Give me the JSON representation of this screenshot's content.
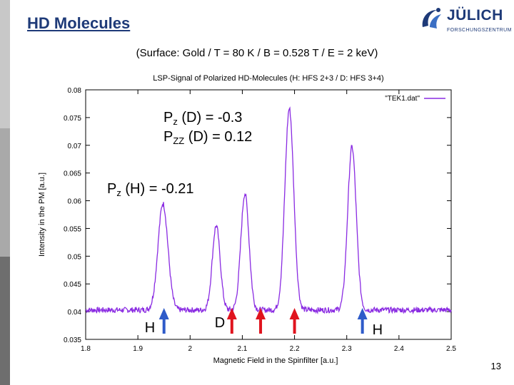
{
  "slide": {
    "title": "HD Molecules",
    "subtitle": "(Surface: Gold / T = 80 K / B = 0.528 T / E = 2 keV)",
    "page_number": "13"
  },
  "logo": {
    "name": "JÜLICH",
    "sub": "FORSCHUNGSZENTRUM",
    "brand_color": "#1e3a78"
  },
  "colors": {
    "trace": "#8a2be2",
    "h_arrow": "#2e5bc9",
    "d_arrow": "#e0141e"
  },
  "annotations": {
    "pz_d_main": "P",
    "pz_d_sub": "z",
    "pz_d_rest": " (D) = -0.3",
    "pzz_d_main": "P",
    "pzz_d_sub": "ZZ",
    "pzz_d_rest": " (D) = 0.12",
    "pz_h_main": "P",
    "pz_h_sub": "z",
    "pz_h_rest": " (H) = -0.21",
    "h_left": "H",
    "d_mid": "D",
    "h_right": "H"
  },
  "chart_data": {
    "type": "line",
    "title": "LSP-Signal of Polarized HD-Molecules (H: HFS 2+3 / D: HFS 3+4)",
    "xlabel": "Magnetic Field in the Spinfilter [a.u.]",
    "ylabel": "Intensity in the PM [a.u.]",
    "legend": "\"TEK1.dat\"",
    "legend_position": "top-right",
    "xlim": [
      1.8,
      2.5
    ],
    "ylim": [
      0.035,
      0.08
    ],
    "x_ticks": [
      "1.8",
      "1.9",
      "2",
      "2.1",
      "2.2",
      "2.3",
      "2.4",
      "2.5"
    ],
    "y_ticks": [
      "0.035",
      "0.04",
      "0.045",
      "0.05",
      "0.055",
      "0.06",
      "0.065",
      "0.07",
      "0.075",
      "0.08"
    ],
    "baseline": 0.0403,
    "noise": 0.0005,
    "peaks": [
      {
        "x": 1.948,
        "height": 0.0595,
        "width": 0.0095
      },
      {
        "x": 2.05,
        "height": 0.0555,
        "width": 0.0075
      },
      {
        "x": 2.105,
        "height": 0.0613,
        "width": 0.0078
      },
      {
        "x": 2.19,
        "height": 0.0766,
        "width": 0.0085
      },
      {
        "x": 2.31,
        "height": 0.0697,
        "width": 0.0082
      }
    ],
    "markers": [
      {
        "x": 1.95,
        "label": "H",
        "color": "#2e5bc9"
      },
      {
        "x": 2.08,
        "label": "D",
        "color": "#e0141e"
      },
      {
        "x": 2.135,
        "label": "",
        "color": "#e0141e"
      },
      {
        "x": 2.2,
        "label": "",
        "color": "#e0141e"
      },
      {
        "x": 2.33,
        "label": "H",
        "color": "#2e5bc9"
      }
    ]
  }
}
